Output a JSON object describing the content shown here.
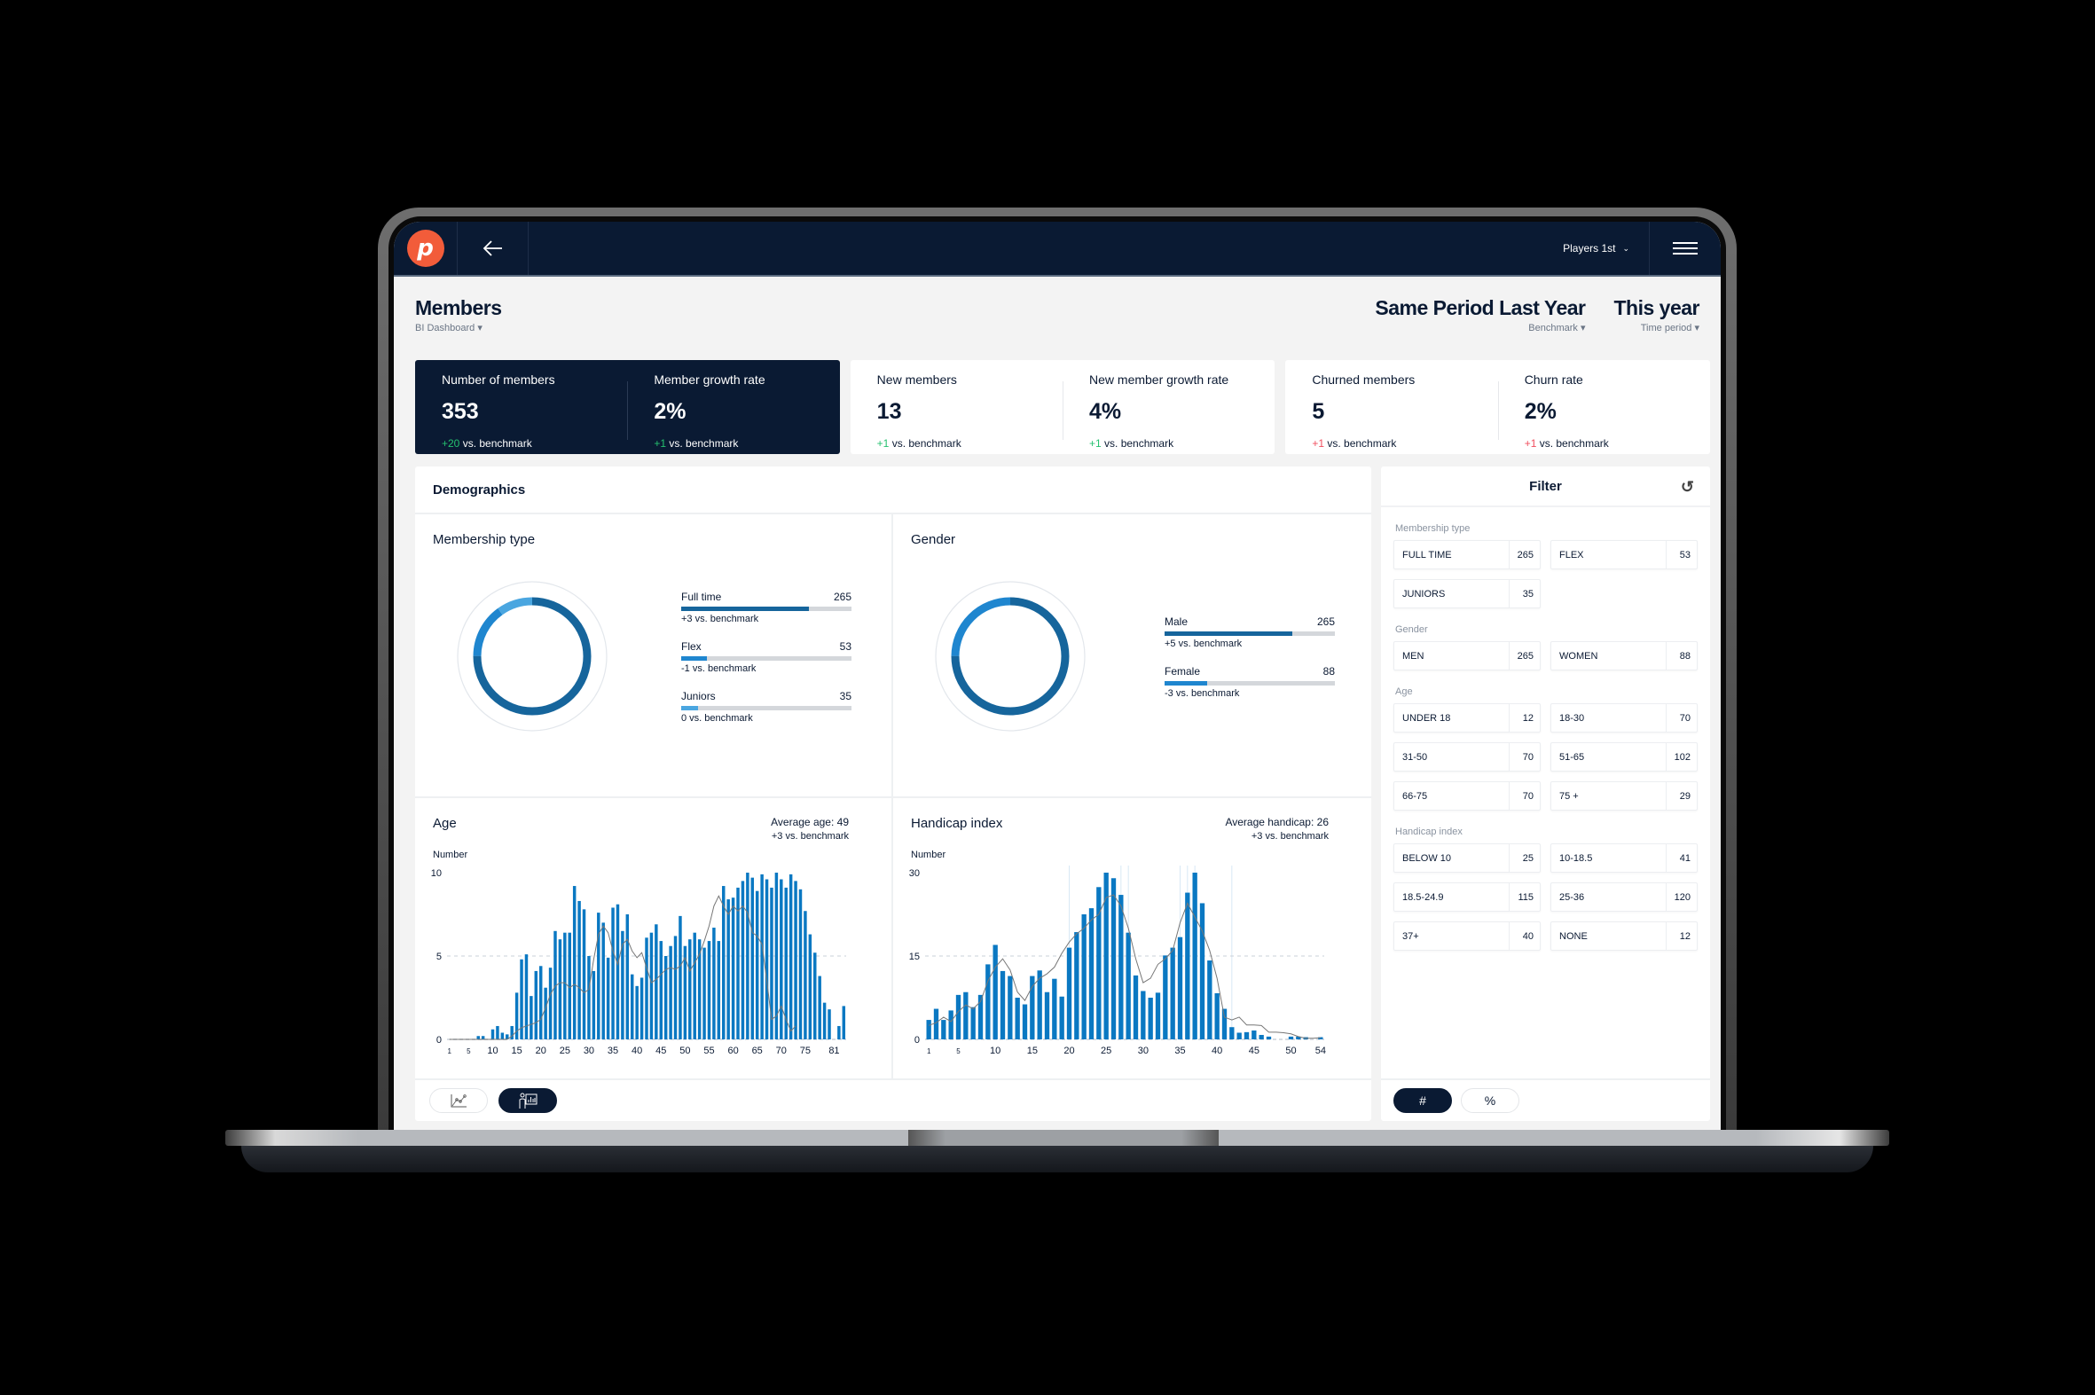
{
  "nav": {
    "logo_letter": "p",
    "back_icon": "arrow-left-icon",
    "club_selector": "Players 1st",
    "menu_icon": "hamburger-menu-icon"
  },
  "header": {
    "title": "Members",
    "subtitle": "BI Dashboard",
    "benchmark": {
      "value": "Same Period Last Year",
      "label": "Benchmark"
    },
    "time_period": {
      "value": "This year",
      "label": "Time period"
    }
  },
  "kpis": [
    {
      "items": [
        {
          "label": "Number of members",
          "value": "353",
          "delta": "+20",
          "delta_suffix": " vs. benchmark"
        },
        {
          "label": "Member growth rate",
          "value": "2%",
          "delta": "+1",
          "delta_suffix": " vs. benchmark"
        }
      ]
    },
    {
      "items": [
        {
          "label": "New members",
          "value": "13",
          "delta": "+1",
          "delta_suffix": " vs. benchmark"
        },
        {
          "label": "New member growth rate",
          "value": "4%",
          "delta": "+1",
          "delta_suffix": " vs. benchmark"
        }
      ]
    },
    {
      "items": [
        {
          "label": "Churned members",
          "value": "5",
          "delta": "+1",
          "delta_suffix": " vs. benchmark"
        },
        {
          "label": "Churn rate",
          "value": "2%",
          "delta": "+1",
          "delta_suffix": " vs. benchmark"
        }
      ]
    }
  ],
  "demographics": {
    "title": "Demographics",
    "membership": {
      "title": "Membership type",
      "items": [
        {
          "label": "Full time",
          "value": "265",
          "note": "+3 vs. benchmark"
        },
        {
          "label": "Flex",
          "value": "53",
          "note": "-1 vs. benchmark"
        },
        {
          "label": "Juniors",
          "value": "35",
          "note": "0 vs. benchmark"
        }
      ]
    },
    "gender": {
      "title": "Gender",
      "items": [
        {
          "label": "Male",
          "value": "265",
          "note": "+5 vs. benchmark"
        },
        {
          "label": "Female",
          "value": "88",
          "note": "-3 vs. benchmark"
        }
      ]
    },
    "age": {
      "title": "Age",
      "avg_label": "Average age:",
      "avg_value": "49",
      "note": "+3 vs. benchmark",
      "ylabel": "Number"
    },
    "handicap": {
      "title": "Handicap index",
      "avg_label": "Average handicap:",
      "avg_value": "26",
      "note": "+3 vs. benchmark",
      "ylabel": "Number"
    },
    "view_toggle": [
      {
        "name": "scatter-chart-icon",
        "active": false
      },
      {
        "name": "presenter-chart-icon",
        "active": true
      }
    ]
  },
  "filter": {
    "title": "Filter",
    "reset_icon": "reset-icon",
    "sections": [
      {
        "title": "Membership type",
        "chips": [
          {
            "label": "FULL TIME",
            "count": "265"
          },
          {
            "label": "FLEX",
            "count": "53"
          },
          {
            "label": "JUNIORS",
            "count": "35"
          }
        ]
      },
      {
        "title": "Gender",
        "chips": [
          {
            "label": "MEN",
            "count": "265"
          },
          {
            "label": "WOMEN",
            "count": "88"
          }
        ]
      },
      {
        "title": "Age",
        "chips": [
          {
            "label": "UNDER 18",
            "count": "12"
          },
          {
            "label": "18-30",
            "count": "70"
          },
          {
            "label": "31-50",
            "count": "70"
          },
          {
            "label": "51-65",
            "count": "102"
          },
          {
            "label": "66-75",
            "count": "70"
          },
          {
            "label": "75 +",
            "count": "29"
          }
        ]
      },
      {
        "title": "Handicap index",
        "chips": [
          {
            "label": "BELOW 10",
            "count": "25"
          },
          {
            "label": "10-18.5",
            "count": "41"
          },
          {
            "label": "18.5-24.9",
            "count": "115"
          },
          {
            "label": "25-36",
            "count": "120"
          },
          {
            "label": "37+",
            "count": "40"
          },
          {
            "label": "NONE",
            "count": "12"
          }
        ]
      }
    ],
    "unit_toggle": [
      {
        "label": "#",
        "active": true
      },
      {
        "label": "%",
        "active": false
      }
    ]
  },
  "colors": {
    "navy": "#0a1a33",
    "accent_orange": "#f25c3a",
    "bar_blue": "#0a78c2",
    "dark_blue": "#16659c",
    "mid_blue": "#1f86cf",
    "light_blue": "#4aa6e0",
    "positive": "#25c16f",
    "negative": "#f04e5e"
  },
  "chart_data": [
    {
      "type": "pie",
      "title": "Membership type",
      "categories": [
        "Full time",
        "Flex",
        "Juniors"
      ],
      "values": [
        265,
        53,
        35
      ],
      "colors": [
        "#16659c",
        "#1f86cf",
        "#4aa6e0"
      ]
    },
    {
      "type": "pie",
      "title": "Gender",
      "categories": [
        "Male",
        "Female"
      ],
      "values": [
        265,
        88
      ],
      "colors": [
        "#16659c",
        "#1f86cf"
      ]
    },
    {
      "type": "bar",
      "title": "Age",
      "ylabel": "Number",
      "xlabel": "",
      "ylim": [
        0,
        10
      ],
      "yticks": [
        0,
        5,
        10
      ],
      "xticks": [
        1,
        5,
        10,
        15,
        20,
        25,
        30,
        35,
        40,
        45,
        50,
        55,
        60,
        65,
        70,
        75,
        81
      ],
      "grid": "dashed at 5",
      "x_start": 1,
      "series": [
        {
          "name": "Members",
          "values": [
            0,
            0,
            0,
            0,
            0,
            0,
            0.2,
            0.2,
            0,
            0.6,
            0.8,
            0.4,
            0.3,
            0.8,
            2.8,
            4.8,
            5.1,
            2.6,
            4.1,
            4.4,
            3.1,
            4.3,
            6.5,
            6.0,
            6.4,
            6.4,
            9.2,
            8.3,
            7.8,
            5.0,
            4.1,
            7.6,
            7.0,
            4.9,
            7.9,
            8.1,
            6.5,
            7.5,
            3.9,
            3.2,
            3.7,
            6.1,
            6.4,
            6.9,
            5.9,
            5.0,
            5.6,
            6.2,
            7.4,
            5.6,
            6.0,
            6.4,
            6.0,
            5.5,
            5.9,
            6.7,
            5.9,
            9.2,
            8.4,
            8.5,
            9.1,
            9.5,
            10.0,
            9.7,
            8.9,
            9.9,
            9.6,
            9.1,
            10.0,
            9.6,
            9.1,
            9.9,
            9.5,
            9.0,
            7.7,
            6.3,
            5.2,
            3.8,
            2.2,
            1.8,
            0,
            0.8,
            2.0
          ]
        },
        {
          "name": "Benchmark",
          "type": "line",
          "values": [
            0,
            0,
            0,
            0,
            0,
            0,
            0,
            0,
            0,
            0,
            0,
            0,
            0,
            0.2,
            0.5,
            0.7,
            0.8,
            0.9,
            1.0,
            1.2,
            1.9,
            2.7,
            3.2,
            3.4,
            3.4,
            3.1,
            3.3,
            3.1,
            2.8,
            3.0,
            4.8,
            6.3,
            6.8,
            6.4,
            5.3,
            4.5,
            5.7,
            6.0,
            5.3,
            4.9,
            5.2,
            4.3,
            3.4,
            3.6,
            3.9,
            4.2,
            4.3,
            4.2,
            4.4,
            4.9,
            4.1,
            4.6,
            5.1,
            5.9,
            6.8,
            8.0,
            8.6,
            8.0,
            7.5,
            8.0,
            7.7,
            8.0,
            7.6,
            6.4,
            6.2,
            5.7,
            3.5,
            1.2,
            1.4,
            2.0,
            1.2,
            0.5,
            0.8
          ]
        }
      ]
    },
    {
      "type": "bar",
      "title": "Handicap index",
      "ylabel": "Number",
      "xlabel": "",
      "ylim": [
        0,
        30
      ],
      "yticks": [
        0,
        15,
        30
      ],
      "xticks": [
        1,
        5,
        10,
        15,
        20,
        25,
        30,
        35,
        40,
        45,
        50,
        54
      ],
      "grid": "dashed at 15",
      "x_start": 1,
      "series": [
        {
          "name": "Members",
          "values": [
            3.5,
            5.5,
            3.5,
            5.2,
            8.0,
            8.5,
            5.8,
            8.0,
            13.5,
            17.0,
            12.3,
            11.4,
            7.5,
            6.3,
            11.4,
            12.4,
            8.5,
            10.9,
            7.7,
            16.5,
            19.3,
            22.5,
            23.6,
            27.4,
            30.0,
            29.0,
            26.0,
            19.2,
            11.5,
            8.7,
            7.5,
            8.4,
            15.1,
            16.5,
            18.4,
            26.4,
            30.0,
            24.5,
            14.2,
            8.3,
            5.5,
            2.2,
            1.2,
            1.3,
            1.6,
            0.8,
            0.5,
            0,
            0,
            0.5,
            0.5,
            0.4,
            0,
            0.4
          ]
        },
        {
          "name": "Benchmark",
          "type": "line",
          "values": [
            2.5,
            3.0,
            4.0,
            3.2,
            5.0,
            6.2,
            5.5,
            6.8,
            10.5,
            13.0,
            14.5,
            12.5,
            8.5,
            7.0,
            9.5,
            11.0,
            11.8,
            13.0,
            15.5,
            17.5,
            19.0,
            20.0,
            21.5,
            22.5,
            25.5,
            26.0,
            24.0,
            20.0,
            14.5,
            10.2,
            11.0,
            13.5,
            14.5,
            16.0,
            21.0,
            24.5,
            22.0,
            19.5,
            16.0,
            11.0,
            4.0,
            3.5,
            4.0,
            2.6,
            2.6,
            2.5,
            1.3,
            1.3,
            1.2,
            1.0,
            0.5,
            0.2,
            0.2,
            0.3
          ]
        }
      ]
    }
  ]
}
